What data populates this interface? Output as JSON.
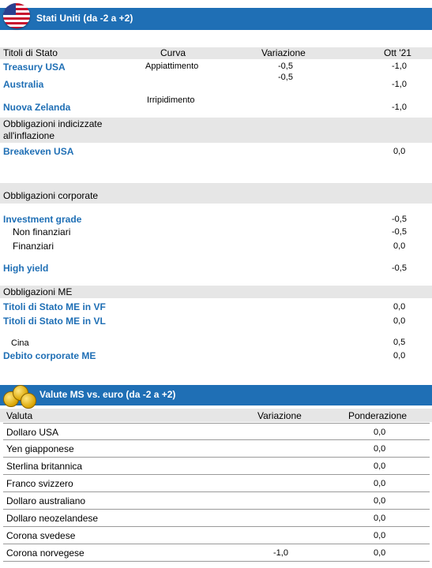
{
  "section1": {
    "title": "Stati Uniti (da -2 a +2)",
    "headers": {
      "c1": "Titoli di Stato",
      "c2": "Curva",
      "c3": "Variazione",
      "c4": "Ott '21"
    },
    "treasury_usa": {
      "label": "Treasury USA",
      "curva": "Appiattimento",
      "variazione": "-0,5",
      "ott": "-1,0"
    },
    "australia": {
      "label": "Australia",
      "variazione": "-0,5",
      "ott": "-1,0"
    },
    "nuova_zelanda": {
      "label": "Nuova Zelanda",
      "curva": "Irripidimento",
      "ott": "-1,0"
    },
    "inflation_header": {
      "line1": "Obbligazioni indicizzate",
      "line2": "all'inflazione"
    },
    "breakeven_usa": {
      "label": "Breakeven USA",
      "ott": "0,0"
    },
    "corporate_header": "Obbligazioni corporate",
    "investment_grade": {
      "label": "Investment grade",
      "ott": "-0,5"
    },
    "non_finanziari": {
      "label": "Non finanziari",
      "ott": "-0,5"
    },
    "finanziari": {
      "label": "Finanziari",
      "ott": "0,0"
    },
    "high_yield": {
      "label": "High yield",
      "ott": "-0,5"
    },
    "me_header": "Obbligazioni ME",
    "stato_me_vf": {
      "label": "Titoli di Stato ME in VF",
      "ott": "0,0"
    },
    "stato_me_vl": {
      "label": "Titoli di Stato ME in VL",
      "ott": "0,0"
    },
    "cina": {
      "label": "Cina",
      "ott": "0,5"
    },
    "debito_corp_me": {
      "label": "Debito corporate ME",
      "ott": "0,0"
    }
  },
  "section2": {
    "title": "Valute MS vs. euro (da  -2 a +2)",
    "headers": {
      "c1": "Valuta",
      "c2": "Variazione",
      "c3": "Ponderazione"
    },
    "rows": [
      {
        "label": "Dollaro USA",
        "variazione": "",
        "ponderazione": "0,0"
      },
      {
        "label": "Yen giapponese",
        "variazione": "",
        "ponderazione": "0,0"
      },
      {
        "label": "Sterlina britannica",
        "variazione": "",
        "ponderazione": "0,0"
      },
      {
        "label": "Franco svizzero",
        "variazione": "",
        "ponderazione": "0,0"
      },
      {
        "label": "Dollaro australiano",
        "variazione": "",
        "ponderazione": "0,0"
      },
      {
        "label": "Dollaro neozelandese",
        "variazione": "",
        "ponderazione": "0,0"
      },
      {
        "label": "Corona svedese",
        "variazione": "",
        "ponderazione": "0,0"
      },
      {
        "label": "Corona norvegese",
        "variazione": "-1,0",
        "ponderazione": "0,0"
      }
    ]
  },
  "icons": {
    "flag": "us-flag-icon",
    "coins": "euro-coins-icon"
  },
  "colors": {
    "banner": "#1f6fb5",
    "label_blue": "#1f6fb5",
    "row_gray": "#e6e6e6"
  }
}
